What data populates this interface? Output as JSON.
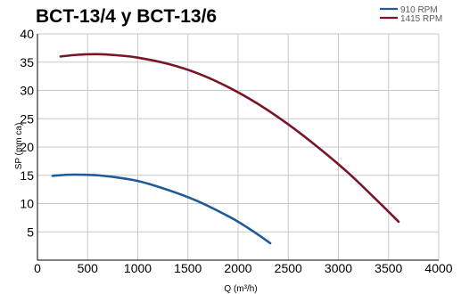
{
  "chart_data": {
    "type": "line",
    "title": "BCT-13/4 y BCT-13/6",
    "xlabel": "Q (m³/h)",
    "ylabel": "SP (mm ca)",
    "xlim": [
      0,
      4000
    ],
    "ylim": [
      0,
      40
    ],
    "xticks": [
      0,
      500,
      1000,
      1500,
      2000,
      2500,
      3000,
      3500,
      4000
    ],
    "yticks": [
      5,
      10,
      15,
      20,
      25,
      30,
      35,
      40
    ],
    "grid": true,
    "legend_position": "top-right",
    "series": [
      {
        "name": "910 RPM",
        "color": "#1f5b96",
        "x": [
          150,
          300,
          450,
          600,
          800,
          1000,
          1200,
          1400,
          1600,
          1800,
          2000,
          2200,
          2320
        ],
        "y": [
          14.9,
          15.1,
          15.1,
          15.0,
          14.6,
          14.0,
          13.0,
          11.8,
          10.4,
          8.7,
          6.8,
          4.5,
          3.0
        ]
      },
      {
        "name": "1415 RPM",
        "color": "#7a1528",
        "x": [
          230,
          400,
          600,
          800,
          1000,
          1300,
          1600,
          1900,
          2200,
          2500,
          2800,
          3100,
          3400,
          3600
        ],
        "y": [
          36.0,
          36.3,
          36.4,
          36.2,
          35.8,
          34.7,
          33.0,
          30.6,
          27.6,
          24.0,
          19.9,
          15.4,
          10.3,
          6.8
        ]
      }
    ]
  }
}
